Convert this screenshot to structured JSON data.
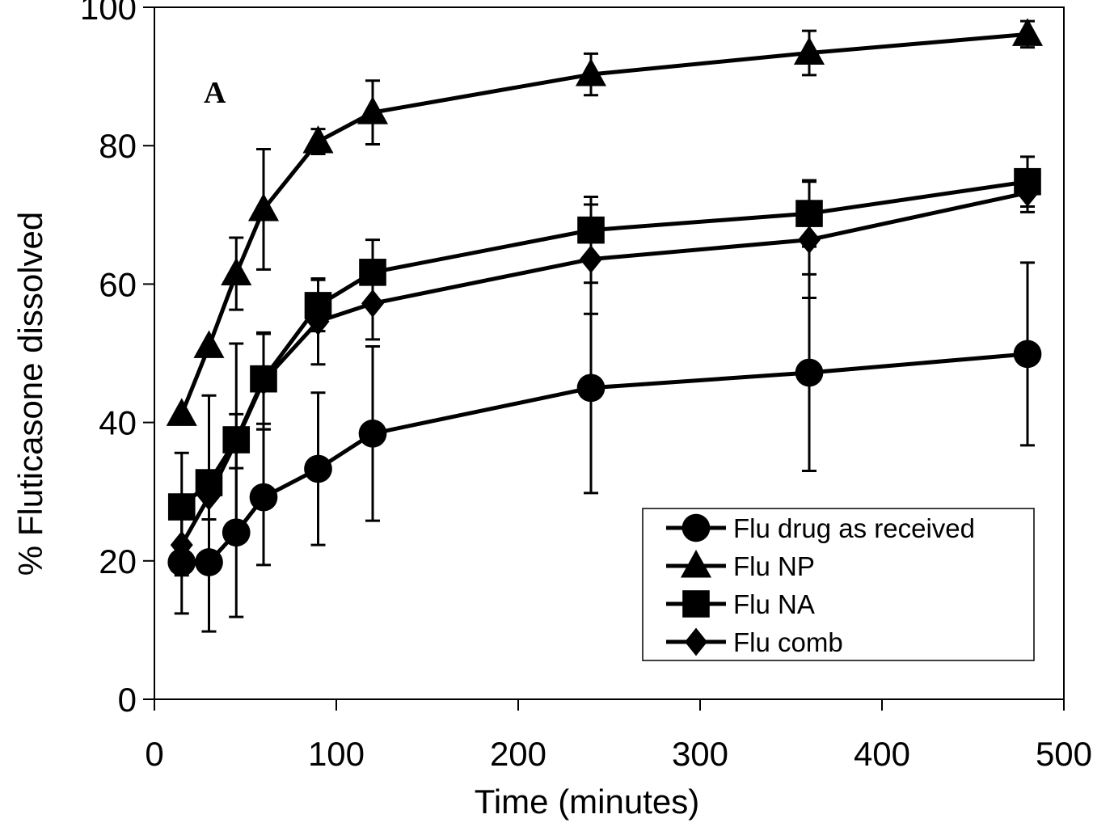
{
  "chart_data": {
    "type": "line",
    "panel_label": "A",
    "xlabel": "Time (minutes)",
    "ylabel": "% Fluticasone dissolved",
    "xlim": [
      0,
      500
    ],
    "ylim": [
      0,
      100
    ],
    "x_ticks": [
      0,
      100,
      200,
      300,
      400,
      500
    ],
    "y_ticks": [
      0,
      20,
      40,
      60,
      80,
      100
    ],
    "grid": false,
    "legend_position": "bottom-right",
    "x": [
      15,
      30,
      45,
      60,
      90,
      120,
      240,
      360,
      480
    ],
    "series": [
      {
        "name": "Flu drug as received",
        "marker": "circle",
        "values": [
          19.8,
          19.8,
          24.1,
          29.2,
          33.3,
          38.4,
          45.0,
          47.2,
          49.9
        ],
        "errors": [
          7.4,
          10.0,
          12.2,
          9.8,
          11.0,
          12.6,
          15.2,
          14.2,
          13.2
        ]
      },
      {
        "name": "Flu NP",
        "marker": "triangle",
        "values": [
          41.2,
          51.0,
          61.5,
          70.8,
          80.6,
          84.8,
          90.3,
          93.4,
          96.1
        ],
        "errors": [
          0,
          0,
          5.2,
          8.7,
          1.8,
          4.6,
          3.0,
          3.2,
          1.9
        ]
      },
      {
        "name": "Flu NA",
        "marker": "square",
        "values": [
          27.8,
          31.3,
          37.5,
          46.3,
          56.9,
          61.7,
          67.8,
          70.2,
          74.8
        ],
        "errors": [
          7.8,
          12.6,
          13.9,
          6.5,
          3.7,
          4.7,
          4.8,
          4.8,
          3.6
        ]
      },
      {
        "name": "Flu comb",
        "marker": "diamond",
        "values": [
          22.3,
          29.3,
          37.3,
          46.0,
          54.6,
          57.2,
          63.6,
          66.4,
          73.2
        ],
        "errors": [
          4.4,
          3.3,
          3.9,
          7.0,
          6.2,
          5.2,
          7.9,
          8.4,
          2.8
        ]
      }
    ]
  }
}
